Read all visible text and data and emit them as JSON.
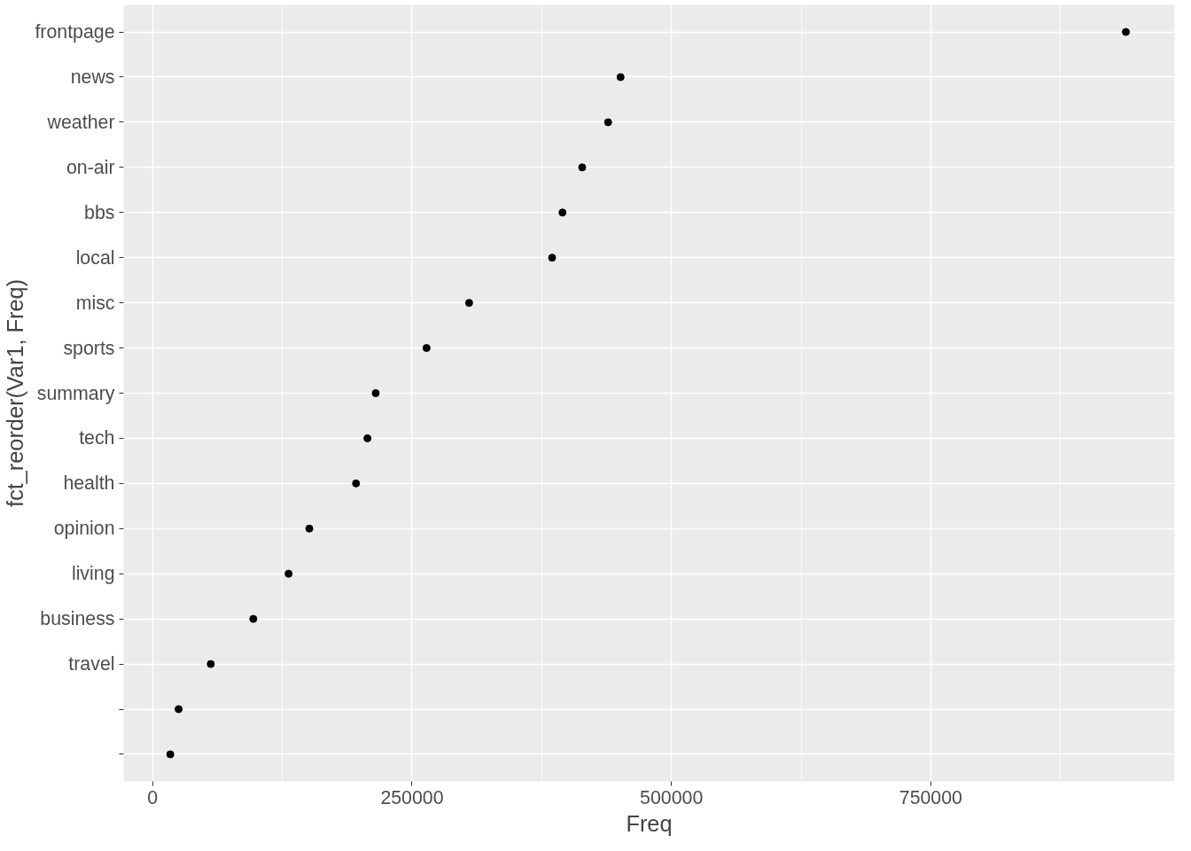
{
  "chart_data": {
    "type": "scatter",
    "orientation": "horizontal",
    "xlabel": "Freq",
    "ylabel": "fct_reorder(Var1, Freq)",
    "categories": [
      "frontpage",
      "news",
      "weather",
      "on-air",
      "bbs",
      "local",
      "misc",
      "sports",
      "summary",
      "tech",
      "health",
      "opinion",
      "living",
      "business",
      "travel",
      null,
      null
    ],
    "values": [
      938000,
      451000,
      439000,
      414000,
      395000,
      385000,
      305000,
      264000,
      215000,
      207000,
      196000,
      151000,
      131000,
      97000,
      56000,
      25000,
      17000
    ],
    "color": "#000000",
    "marker": "circle",
    "xlim": [
      -28000,
      985000
    ],
    "xticks": [
      0,
      250000,
      500000,
      750000
    ],
    "grid": true
  }
}
